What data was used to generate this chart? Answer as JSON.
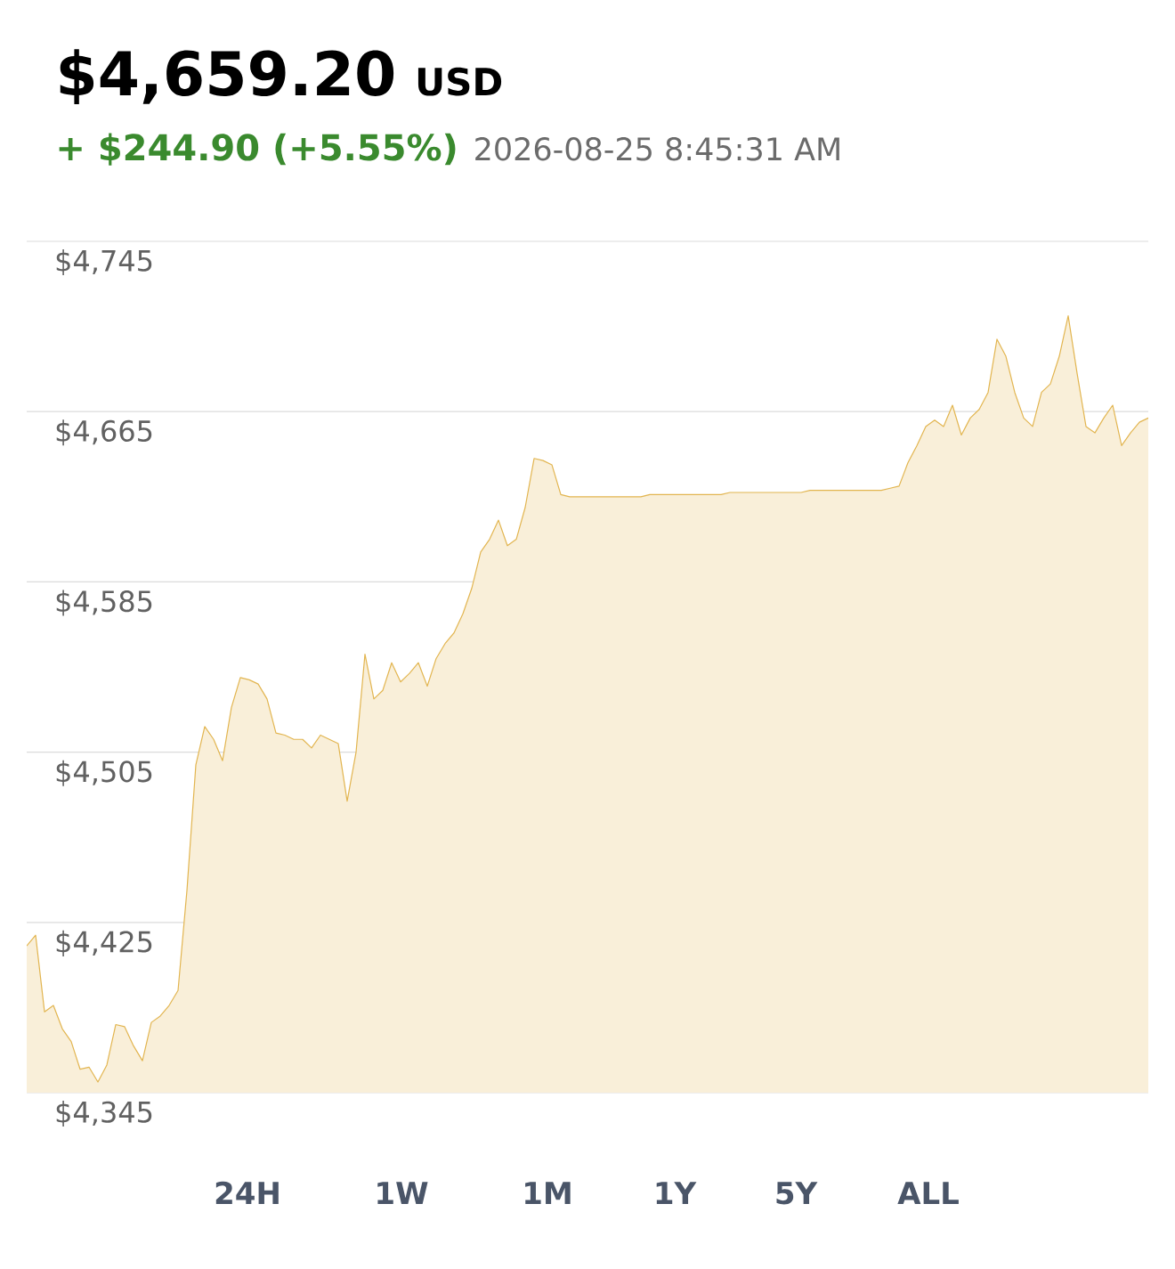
{
  "chart_data": {
    "type": "area",
    "title": "$4,659.20",
    "subtitle": "+ $244.90 (+5.55%)",
    "annotations": [
      "USD",
      "2026-08-25 8:45:31 AM",
      "24H",
      "1W",
      "1M",
      "1Y",
      "5Y",
      "ALL"
    ],
    "categories": [
      null,
      null,
      null,
      null,
      null,
      null,
      null,
      null,
      null,
      null,
      null,
      null,
      null,
      null,
      null,
      null,
      null,
      null,
      null,
      null,
      null,
      null,
      null,
      null,
      null,
      null,
      null,
      null,
      null,
      null,
      null,
      null,
      null,
      null,
      null,
      null,
      null,
      null,
      null,
      null,
      null,
      null,
      null,
      null,
      null,
      null,
      null,
      null,
      null,
      null,
      null,
      null,
      null,
      null,
      null,
      null,
      null,
      null,
      null,
      null,
      null,
      null,
      null,
      null,
      null,
      null,
      null,
      null,
      null,
      null,
      null,
      null,
      null,
      null,
      null,
      null,
      null,
      null,
      null,
      null,
      null,
      null,
      null,
      null,
      null,
      null,
      null,
      null,
      null,
      null,
      null,
      null,
      null,
      null,
      null,
      null,
      null,
      null,
      null,
      null,
      null,
      null,
      null,
      null,
      null,
      null,
      null,
      null,
      null,
      null,
      null,
      null,
      null,
      null,
      null,
      null,
      null,
      null,
      null,
      null,
      null,
      null,
      null,
      null,
      null,
      null,
      null
    ],
    "series": [
      {
        "color": "#e2b550",
        "values": [
          4414,
          4419,
          4383,
          4386,
          4375,
          4369,
          4356,
          4357,
          4350,
          4358,
          4377,
          4376,
          4367,
          4360,
          4378,
          4381,
          4386,
          4393,
          4440,
          4499,
          4517,
          4511,
          4501,
          4526,
          4540,
          4539,
          4537,
          4530,
          4514,
          4513,
          4511,
          4511,
          4507,
          4513,
          4511,
          4509,
          4482,
          4505,
          4551,
          4530,
          4534,
          4547,
          4538,
          4542,
          4547,
          4536,
          4549,
          4556,
          4561,
          4570,
          4582,
          4599,
          4605,
          4614,
          4602,
          4605,
          4620,
          4643,
          4642,
          4640,
          4626,
          4625,
          4625,
          4625,
          4625,
          4625,
          4625,
          4625,
          4625,
          4625,
          4626,
          4626,
          4626,
          4626,
          4626,
          4626,
          4626,
          4626,
          4626,
          4627,
          4627,
          4627,
          4627,
          4627,
          4627,
          4627,
          4627,
          4627,
          4628,
          4628,
          4628,
          4628,
          4628,
          4628,
          4628,
          4628,
          4628,
          4629,
          4630,
          4641,
          4649,
          4658,
          4661,
          4658,
          4668,
          4654,
          4662,
          4666,
          4674,
          4699,
          4691,
          4674,
          4662,
          4658,
          4674,
          4678,
          4691,
          4710,
          4683,
          4658,
          4655,
          4662,
          4668,
          4649,
          4655,
          4660,
          4662
        ]
      }
    ],
    "ylim": [
      4345,
      4745
    ],
    "yticks": [
      {
        "value": 4345,
        "label": "$4,345"
      },
      {
        "value": 4425,
        "label": "$4,425"
      },
      {
        "value": 4505,
        "label": "$4,505"
      },
      {
        "value": 4585,
        "label": "$4,585"
      },
      {
        "value": 4665,
        "label": "$4,665"
      },
      {
        "value": 4745,
        "label": "$4,745"
      }
    ],
    "grid": "y",
    "tick_labels": "y",
    "marker": "none",
    "line_style": "solid"
  }
}
